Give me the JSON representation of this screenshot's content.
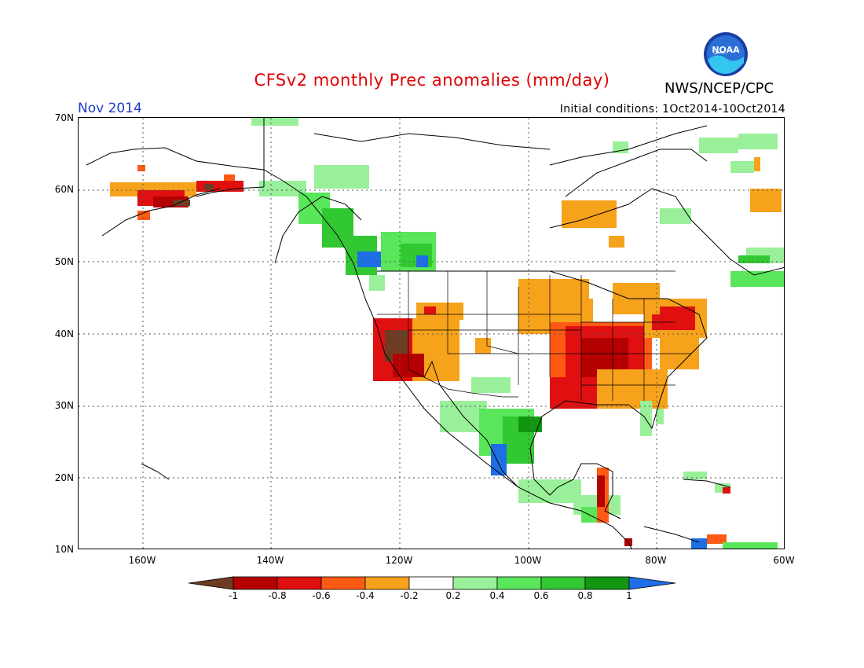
{
  "header": {
    "title": "CFSv2 monthly Prec anomalies (mm/day)",
    "agency": "NWS/NCEP/CPC",
    "logo_text": "NOAA",
    "month": "Nov 2014",
    "initial_conditions": "Initial conditions: 1Oct2014-10Oct2014"
  },
  "map": {
    "lat_labels": [
      "70N",
      "60N",
      "50N",
      "40N",
      "30N",
      "20N",
      "10N"
    ],
    "lon_labels": [
      "160W",
      "140W",
      "120W",
      "100W",
      "80W",
      "60W"
    ],
    "lat_range": [
      10,
      70
    ],
    "lon_range": [
      -170,
      -60
    ],
    "grid": true
  },
  "legend": {
    "tick_labels": [
      "-1",
      "-0.8",
      "-0.6",
      "-0.4",
      "-0.2",
      "0.2",
      "0.4",
      "0.6",
      "0.8",
      "1"
    ],
    "colors": [
      "#6e3b23",
      "#b40000",
      "#e01010",
      "#ff5a14",
      "#f7a21b",
      "#ffffff",
      "#9af09a",
      "#5ae65a",
      "#32c832",
      "#129612",
      "#1e6ee6"
    ]
  },
  "colors": {
    "title": "#e00000",
    "month": "#1a3ec8"
  }
}
